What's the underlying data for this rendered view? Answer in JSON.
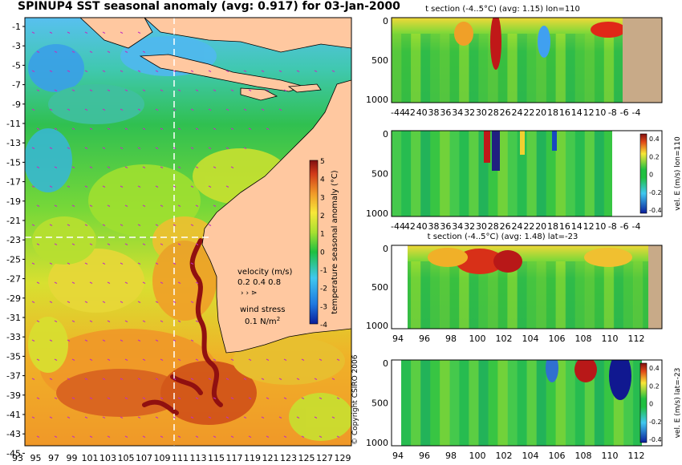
{
  "main_title": "SPINUP4 SST seasonal anomaly (avg: 0.917) for 03-Jan-2000",
  "colors": {
    "land": "#ffc8a0",
    "land_section": "#c8aa88",
    "hot": "#b01818",
    "warm": "#f0a020",
    "neutral": "#20c040",
    "cool": "#40b0f0",
    "cold": "#1830c0"
  },
  "map": {
    "ylabels": [
      "-1",
      "-3",
      "-5",
      "-7",
      "-9",
      "-11",
      "-13",
      "-15",
      "-17",
      "-19",
      "-21",
      "-23",
      "-25",
      "-27",
      "-29",
      "-31",
      "-33",
      "-35",
      "-37",
      "-39",
      "-41",
      "-43",
      "-45"
    ],
    "xlabels": [
      "93",
      "95",
      "97",
      "99",
      "101",
      "103",
      "105",
      "107",
      "109",
      "111",
      "113",
      "115",
      "117",
      "119",
      "121",
      "123",
      "125",
      "127",
      "129"
    ],
    "lon_range": [
      93,
      130
    ],
    "lat_range": [
      -45,
      0
    ],
    "crosshair": {
      "lon": 110,
      "lat": -23
    },
    "colorbar": {
      "label": "temperature seasonal anomaly (°C)",
      "ticks": [
        "5",
        "4",
        "3",
        "2",
        "1",
        "0",
        "-1",
        "-2",
        "-3",
        "-4"
      ],
      "range": [
        -4,
        5
      ]
    },
    "velocity_legend": {
      "title": "velocity (m/s)",
      "scale": "0.2 0.4 0.8"
    },
    "wind_legend": {
      "title": "wind stress",
      "value": "0.1 N/m",
      "superscript": "2"
    }
  },
  "copyright": "© Copyright CSIRO 2006",
  "panels": [
    {
      "title": "t section (-4..5°C) (avg: 1.15) lon=110",
      "yticks": [
        "0",
        "500",
        "1000"
      ],
      "xticks": [
        "-44",
        "42",
        "40",
        "38",
        "36",
        "34",
        "32",
        "30",
        "28",
        "26",
        "24",
        "22",
        "20",
        "18",
        "16",
        "14",
        "12",
        "10",
        "-8",
        "-6",
        "-4"
      ],
      "colorbar": null
    },
    {
      "title": "",
      "yticks": [
        "0",
        "500",
        "1000"
      ],
      "xticks": [
        "-44",
        "42",
        "40",
        "38",
        "36",
        "34",
        "32",
        "30",
        "28",
        "26",
        "24",
        "22",
        "20",
        "18",
        "16",
        "14",
        "12",
        "10",
        "-8",
        "-6",
        "-4"
      ],
      "colorbar": {
        "label": "vel. E (m/s) lon=110",
        "ticks": [
          "0.4",
          "0.2",
          "0",
          "-0.2",
          "-0.4"
        ]
      }
    },
    {
      "title": "t section (-4..5°C) (avg: 1.48) lat=-23",
      "yticks": [
        "0",
        "500",
        "1000"
      ],
      "xticks": [
        "94",
        "96",
        "98",
        "100",
        "102",
        "104",
        "106",
        "108",
        "110",
        "112"
      ],
      "colorbar": null
    },
    {
      "title": "",
      "yticks": [
        "0",
        "500",
        "1000"
      ],
      "xticks": [
        "94",
        "96",
        "98",
        "100",
        "102",
        "104",
        "106",
        "108",
        "110",
        "112"
      ],
      "colorbar": {
        "label": "vel. E (m/s) lat=-23",
        "ticks": [
          "0.4",
          "0.2",
          "0",
          "-0.2",
          "-0.4"
        ]
      }
    }
  ]
}
